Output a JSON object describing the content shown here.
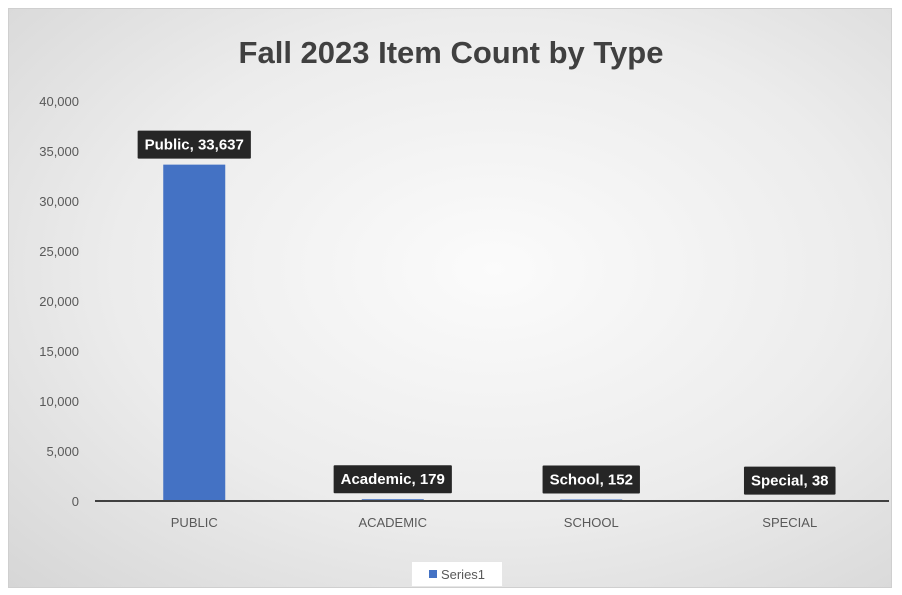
{
  "chart_data": {
    "type": "bar",
    "title": "Fall 2023 Item Count by Type",
    "categories": [
      "PUBLIC",
      "ACADEMIC",
      "SCHOOL",
      "SPECIAL"
    ],
    "series": [
      {
        "name": "Series1",
        "values": [
          33637,
          179,
          152,
          38
        ],
        "data_labels": [
          "Public, 33,637",
          "Academic, 179",
          "School, 152",
          "Special, 38"
        ]
      }
    ],
    "y_ticks": [
      "0",
      "5,000",
      "10,000",
      "15,000",
      "20,000",
      "25,000",
      "30,000",
      "35,000",
      "40,000"
    ],
    "ylim": [
      0,
      40000
    ],
    "xlabel": "",
    "ylabel": "",
    "grid": false,
    "legend_position": "bottom",
    "colors": {
      "bar": "#4472c4",
      "label_bg": "#262626",
      "label_text": "#ffffff",
      "axis": "#404040"
    }
  }
}
